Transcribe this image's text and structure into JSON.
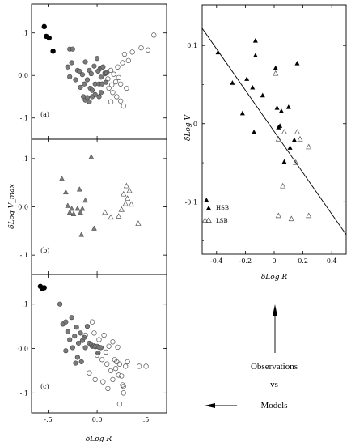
{
  "chart_data": [
    {
      "type": "scatter",
      "panel_label": "(a)",
      "xlim": [
        -0.67,
        0.71
      ],
      "ylim": [
        -0.15,
        0.168
      ],
      "yticks": [
        0.1,
        0.0,
        -0.1
      ],
      "ytick_labels": [
        ".1",
        "0.0",
        "-.1"
      ],
      "series": [
        {
          "marker": "filled-black-circle",
          "points": [
            [
              -0.54,
              0.115
            ],
            [
              -0.52,
              0.092
            ],
            [
              -0.49,
              0.088
            ],
            [
              -0.45,
              0.057
            ]
          ]
        },
        {
          "marker": "filled-grey-circle",
          "points": [
            [
              -0.28,
              0.062
            ],
            [
              -0.25,
              0.062
            ],
            [
              -0.3,
              0.02
            ],
            [
              -0.28,
              -0.003
            ],
            [
              -0.26,
              0.03
            ],
            [
              -0.22,
              -0.01
            ],
            [
              -0.2,
              0.012
            ],
            [
              -0.18,
              0.01
            ],
            [
              -0.17,
              -0.028
            ],
            [
              -0.15,
              0.002
            ],
            [
              -0.13,
              -0.02
            ],
            [
              -0.12,
              0.032
            ],
            [
              -0.1,
              -0.01
            ],
            [
              -0.08,
              0.012
            ],
            [
              -0.07,
              -0.03
            ],
            [
              -0.06,
              0.004
            ],
            [
              -0.05,
              -0.035
            ],
            [
              -0.03,
              0.022
            ],
            [
              -0.02,
              -0.02
            ],
            [
              0.0,
              0.04
            ],
            [
              0.01,
              0.01
            ],
            [
              0.02,
              -0.02
            ],
            [
              0.03,
              0.016
            ],
            [
              0.04,
              -0.004
            ],
            [
              0.05,
              -0.02
            ],
            [
              0.06,
              0.02
            ],
            [
              0.08,
              0.004
            ],
            [
              0.09,
              -0.016
            ],
            [
              0.1,
              0.006
            ],
            [
              -0.14,
              -0.05
            ],
            [
              -0.12,
              -0.058
            ],
            [
              -0.1,
              -0.052
            ],
            [
              -0.08,
              -0.062
            ],
            [
              -0.05,
              -0.05
            ],
            [
              -0.02,
              -0.045
            ],
            [
              0.02,
              -0.05
            ],
            [
              0.04,
              -0.04
            ]
          ]
        },
        {
          "marker": "open-circle",
          "points": [
            [
              0.05,
              0.018
            ],
            [
              0.08,
              0.006
            ],
            [
              0.11,
              -0.008
            ],
            [
              0.14,
              0.012
            ],
            [
              0.15,
              -0.022
            ],
            [
              0.17,
              0.003
            ],
            [
              0.19,
              -0.015
            ],
            [
              0.21,
              0.02
            ],
            [
              0.22,
              -0.005
            ],
            [
              0.24,
              -0.02
            ],
            [
              0.26,
              0.03
            ],
            [
              0.28,
              0.05
            ],
            [
              0.12,
              -0.03
            ],
            [
              0.16,
              -0.04
            ],
            [
              0.2,
              -0.05
            ],
            [
              0.24,
              -0.06
            ],
            [
              0.3,
              -0.03
            ],
            [
              0.36,
              0.055
            ],
            [
              0.45,
              0.065
            ],
            [
              0.52,
              0.06
            ],
            [
              0.58,
              0.095
            ],
            [
              0.27,
              -0.072
            ],
            [
              0.14,
              -0.062
            ],
            [
              0.32,
              0.035
            ]
          ]
        }
      ]
    },
    {
      "type": "scatter",
      "panel_label": "(b)",
      "xlim": [
        -0.67,
        0.71
      ],
      "ylim": [
        -0.14,
        0.14
      ],
      "yticks": [
        0.1,
        0.0,
        -0.1
      ],
      "ytick_labels": [
        ".1",
        "0.0",
        "-.1"
      ],
      "ylabel": "δLog V_max",
      "series": [
        {
          "marker": "filled-grey-triangle",
          "points": [
            [
              -0.36,
              0.058
            ],
            [
              -0.32,
              0.03
            ],
            [
              -0.3,
              0.002
            ],
            [
              -0.28,
              -0.012
            ],
            [
              -0.26,
              -0.004
            ],
            [
              -0.24,
              -0.015
            ],
            [
              -0.2,
              -0.004
            ],
            [
              -0.18,
              0.036
            ],
            [
              -0.17,
              -0.012
            ],
            [
              -0.16,
              -0.058
            ],
            [
              -0.15,
              -0.004
            ],
            [
              -0.12,
              0.013
            ],
            [
              -0.06,
              0.103
            ],
            [
              -0.03,
              -0.045
            ]
          ]
        },
        {
          "marker": "open-triangle",
          "points": [
            [
              0.08,
              -0.012
            ],
            [
              0.14,
              -0.022
            ],
            [
              0.22,
              -0.02
            ],
            [
              0.25,
              -0.006
            ],
            [
              0.27,
              0.026
            ],
            [
              0.29,
              0.006
            ],
            [
              0.3,
              0.043
            ],
            [
              0.31,
              0.017
            ],
            [
              0.33,
              0.033
            ],
            [
              0.35,
              0.005
            ],
            [
              0.42,
              -0.035
            ]
          ]
        }
      ]
    },
    {
      "type": "scatter",
      "panel_label": "(c)",
      "xlim": [
        -0.67,
        0.71
      ],
      "xticks": [
        -0.5,
        0.0,
        0.5
      ],
      "xtick_labels": [
        "-.5",
        "0.0",
        ".5"
      ],
      "xlabel": "δLog R",
      "ylim": [
        -0.145,
        0.167
      ],
      "yticks": [
        0.1,
        0.0,
        -0.1
      ],
      "ytick_labels": [
        ".1",
        "0.0",
        "-.1"
      ],
      "series": [
        {
          "marker": "filled-black-circle",
          "points": [
            [
              -0.58,
              0.14
            ],
            [
              -0.56,
              0.135
            ],
            [
              -0.54,
              0.137
            ]
          ]
        },
        {
          "marker": "filled-grey-circle",
          "points": [
            [
              -0.38,
              0.1
            ],
            [
              -0.35,
              0.055
            ],
            [
              -0.32,
              0.06
            ],
            [
              -0.3,
              0.038
            ],
            [
              -0.28,
              0.02
            ],
            [
              -0.26,
              0.07
            ],
            [
              -0.25,
              0.002
            ],
            [
              -0.23,
              0.028
            ],
            [
              -0.21,
              0.048
            ],
            [
              -0.2,
              -0.02
            ],
            [
              -0.19,
              0.012
            ],
            [
              -0.17,
              0.035
            ],
            [
              -0.15,
              0.018
            ],
            [
              -0.13,
              0.025
            ],
            [
              -0.12,
              0.002
            ],
            [
              -0.1,
              0.05
            ],
            [
              -0.08,
              0.012
            ],
            [
              -0.06,
              0.008
            ],
            [
              -0.05,
              0.005
            ],
            [
              -0.03,
              0.006
            ],
            [
              -0.02,
              0.004
            ],
            [
              0.0,
              0.005
            ],
            [
              0.02,
              0.003
            ],
            [
              0.04,
              0.002
            ],
            [
              -0.22,
              -0.033
            ],
            [
              -0.16,
              -0.03
            ],
            [
              -0.32,
              -0.005
            ],
            [
              0.01,
              -0.01
            ]
          ]
        },
        {
          "marker": "open-circle",
          "points": [
            [
              -0.12,
              0.03
            ],
            [
              -0.05,
              0.06
            ],
            [
              -0.03,
              0.035
            ],
            [
              0.0,
              -0.015
            ],
            [
              0.02,
              0.02
            ],
            [
              0.05,
              -0.025
            ],
            [
              0.07,
              0.03
            ],
            [
              0.09,
              -0.008
            ],
            [
              0.1,
              -0.035
            ],
            [
              0.12,
              0.005
            ],
            [
              0.14,
              -0.05
            ],
            [
              0.16,
              0.015
            ],
            [
              0.18,
              -0.025
            ],
            [
              0.19,
              -0.045
            ],
            [
              0.2,
              -0.03
            ],
            [
              0.21,
              0.003
            ],
            [
              0.22,
              -0.06
            ],
            [
              0.23,
              -0.035
            ],
            [
              0.25,
              -0.062
            ],
            [
              0.26,
              -0.082
            ],
            [
              0.27,
              -0.1
            ],
            [
              0.29,
              -0.04
            ],
            [
              -0.08,
              -0.055
            ],
            [
              -0.02,
              -0.07
            ],
            [
              0.06,
              -0.075
            ],
            [
              0.11,
              -0.09
            ],
            [
              0.16,
              -0.07
            ],
            [
              0.31,
              -0.03
            ],
            [
              0.43,
              -0.04
            ],
            [
              0.5,
              -0.04
            ],
            [
              0.23,
              -0.125
            ],
            [
              0.27,
              -0.085
            ]
          ]
        }
      ]
    },
    {
      "type": "scatter",
      "xlim": [
        -0.5,
        0.5
      ],
      "xticks": [
        -0.4,
        -0.2,
        0,
        0.2,
        0.4
      ],
      "xtick_labels": [
        "-0.4",
        "-0.2",
        "0",
        "0.2",
        "0.4"
      ],
      "xlabel": "δLog R",
      "ylim": [
        -0.167,
        0.152
      ],
      "yticks": [
        0.1,
        0,
        -0.1
      ],
      "ytick_labels": [
        "0.1",
        "0",
        "-0.1"
      ],
      "ylabel": "δLog V",
      "fit_line": {
        "x": [
          -0.5,
          0.5
        ],
        "y": [
          0.122,
          -0.142
        ]
      },
      "legend": [
        {
          "marker": "filled-black-triangle",
          "label": "HSB"
        },
        {
          "marker": "open-triangle",
          "label": "LSB"
        }
      ],
      "series": [
        {
          "name": "HSB",
          "marker": "filled-black-triangle",
          "points": [
            [
              -0.39,
              0.091
            ],
            [
              -0.13,
              0.106
            ],
            [
              -0.13,
              0.087
            ],
            [
              -0.19,
              0.057
            ],
            [
              -0.29,
              0.052
            ],
            [
              -0.15,
              0.046
            ],
            [
              -0.08,
              0.036
            ],
            [
              -0.22,
              0.013
            ],
            [
              -0.14,
              -0.011
            ],
            [
              0.01,
              0.071
            ],
            [
              0.02,
              0.02
            ],
            [
              0.1,
              0.021
            ],
            [
              0.05,
              0.016
            ],
            [
              0.03,
              -0.005
            ],
            [
              0.16,
              0.077
            ],
            [
              0.07,
              -0.049
            ],
            [
              0.04,
              -0.003
            ],
            [
              0.14,
              -0.021
            ],
            [
              0.11,
              -0.031
            ],
            [
              -0.47,
              -0.098
            ]
          ]
        },
        {
          "name": "LSB",
          "marker": "open-triangle",
          "points": [
            [
              0.01,
              0.064
            ],
            [
              0.03,
              -0.02
            ],
            [
              0.07,
              -0.011
            ],
            [
              0.16,
              -0.011
            ],
            [
              0.18,
              -0.02
            ],
            [
              0.24,
              -0.03
            ],
            [
              0.15,
              -0.05
            ],
            [
              0.06,
              -0.08
            ],
            [
              0.03,
              -0.118
            ],
            [
              0.12,
              -0.122
            ],
            [
              0.24,
              -0.118
            ],
            [
              -0.48,
              -0.124
            ]
          ]
        }
      ]
    }
  ],
  "annotation": {
    "line1": "Observations",
    "line2": "vs",
    "line3": "Models"
  }
}
